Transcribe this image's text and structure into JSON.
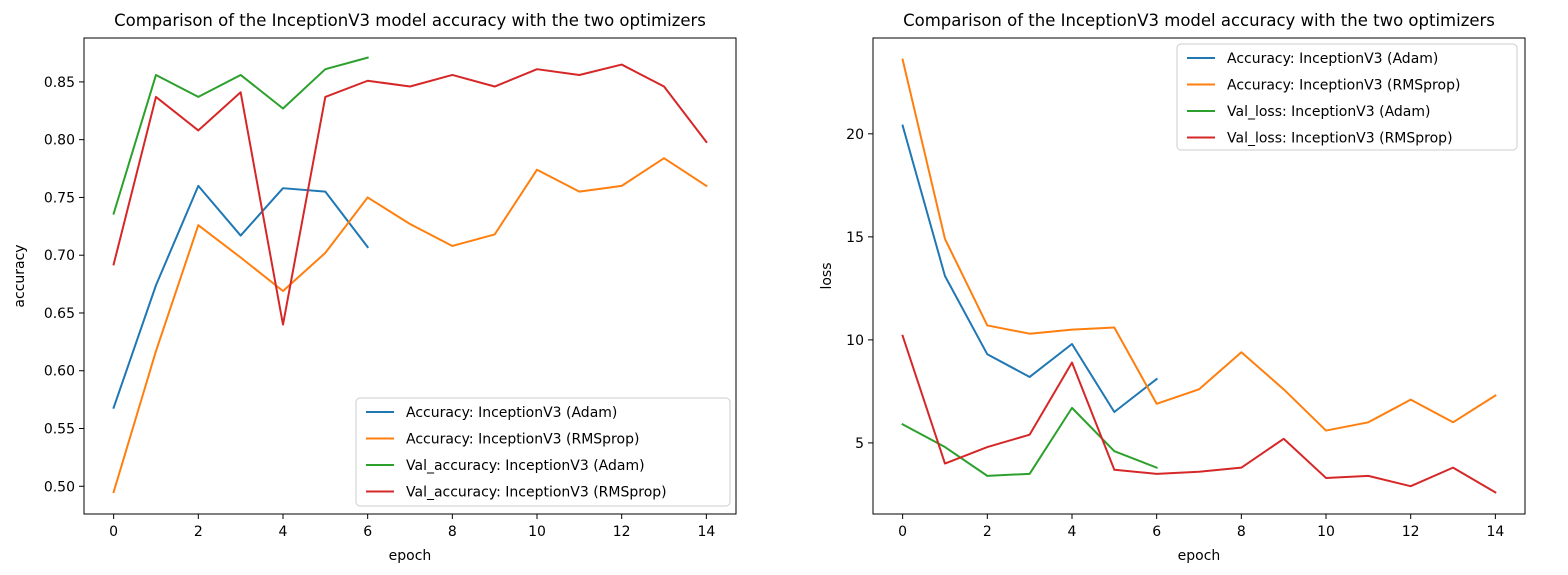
{
  "chart_data": [
    {
      "type": "line",
      "title": "Comparison of the InceptionV3 model accuracy with the two optimizers",
      "xlabel": "epoch",
      "ylabel": "accuracy",
      "xlim": [
        -0.7,
        14.7
      ],
      "ylim": [
        0.476,
        0.888
      ],
      "xticks": [
        0,
        2,
        4,
        6,
        8,
        10,
        12,
        14
      ],
      "yticks": [
        0.5,
        0.55,
        0.6,
        0.65,
        0.7,
        0.75,
        0.8,
        0.85
      ],
      "ytick_labels": [
        "0.50",
        "0.55",
        "0.60",
        "0.65",
        "0.70",
        "0.75",
        "0.80",
        "0.85"
      ],
      "grid": false,
      "legend_position": "lower-right",
      "series": [
        {
          "name": "Accuracy: InceptionV3 (Adam)",
          "color": "#1f77b4",
          "x": [
            0,
            1,
            2,
            3,
            4,
            5,
            6
          ],
          "y": [
            0.568,
            0.674,
            0.76,
            0.717,
            0.758,
            0.755,
            0.707
          ]
        },
        {
          "name": "Accuracy: InceptionV3 (RMSprop)",
          "color": "#ff7f0e",
          "x": [
            0,
            1,
            2,
            3,
            4,
            5,
            6,
            7,
            8,
            9,
            10,
            11,
            12,
            13,
            14
          ],
          "y": [
            0.495,
            0.617,
            0.726,
            0.698,
            0.669,
            0.702,
            0.75,
            0.727,
            0.708,
            0.718,
            0.774,
            0.755,
            0.76,
            0.784,
            0.76
          ]
        },
        {
          "name": "Val_accuracy: InceptionV3 (Adam)",
          "color": "#2ca02c",
          "x": [
            0,
            1,
            2,
            3,
            4,
            5,
            6
          ],
          "y": [
            0.736,
            0.856,
            0.837,
            0.856,
            0.827,
            0.861,
            0.871
          ]
        },
        {
          "name": "Val_accuracy: InceptionV3 (RMSprop)",
          "color": "#d62728",
          "x": [
            0,
            1,
            2,
            3,
            4,
            5,
            6,
            7,
            8,
            9,
            10,
            11,
            12,
            13,
            14
          ],
          "y": [
            0.692,
            0.837,
            0.808,
            0.841,
            0.64,
            0.837,
            0.851,
            0.846,
            0.856,
            0.846,
            0.861,
            0.856,
            0.865,
            0.846,
            0.798
          ]
        }
      ]
    },
    {
      "type": "line",
      "title": "Comparison of the InceptionV3 model accuracy with the two optimizers",
      "xlabel": "epoch",
      "ylabel": "loss",
      "xlim": [
        -0.7,
        14.7
      ],
      "ylim": [
        1.55,
        24.65
      ],
      "xticks": [
        0,
        2,
        4,
        6,
        8,
        10,
        12,
        14
      ],
      "yticks": [
        5,
        10,
        15,
        20
      ],
      "ytick_labels": [
        "5",
        "10",
        "15",
        "20"
      ],
      "grid": false,
      "legend_position": "upper-right",
      "series": [
        {
          "name": "Accuracy: InceptionV3 (Adam)",
          "color": "#1f77b4",
          "x": [
            0,
            1,
            2,
            3,
            4,
            5,
            6
          ],
          "y": [
            20.4,
            13.1,
            9.3,
            8.2,
            9.8,
            6.5,
            8.1
          ]
        },
        {
          "name": "Accuracy: InceptionV3 (RMSprop)",
          "color": "#ff7f0e",
          "x": [
            0,
            1,
            2,
            3,
            4,
            5,
            6,
            7,
            8,
            9,
            10,
            11,
            12,
            13,
            14
          ],
          "y": [
            23.6,
            14.9,
            10.7,
            10.3,
            10.5,
            10.6,
            6.9,
            7.6,
            9.4,
            7.6,
            5.6,
            6.0,
            7.1,
            6.0,
            7.3
          ]
        },
        {
          "name": "Val_loss: InceptionV3 (Adam)",
          "color": "#2ca02c",
          "x": [
            0,
            1,
            2,
            3,
            4,
            5,
            6
          ],
          "y": [
            5.9,
            4.8,
            3.4,
            3.5,
            6.7,
            4.6,
            3.8
          ]
        },
        {
          "name": "Val_loss: InceptionV3 (RMSprop)",
          "color": "#d62728",
          "x": [
            0,
            1,
            2,
            3,
            4,
            5,
            6,
            7,
            8,
            9,
            10,
            11,
            12,
            13,
            14
          ],
          "y": [
            10.2,
            4.0,
            4.8,
            5.4,
            8.9,
            3.7,
            3.5,
            3.6,
            3.8,
            5.2,
            3.3,
            3.4,
            2.9,
            3.8,
            2.6
          ]
        }
      ]
    }
  ]
}
